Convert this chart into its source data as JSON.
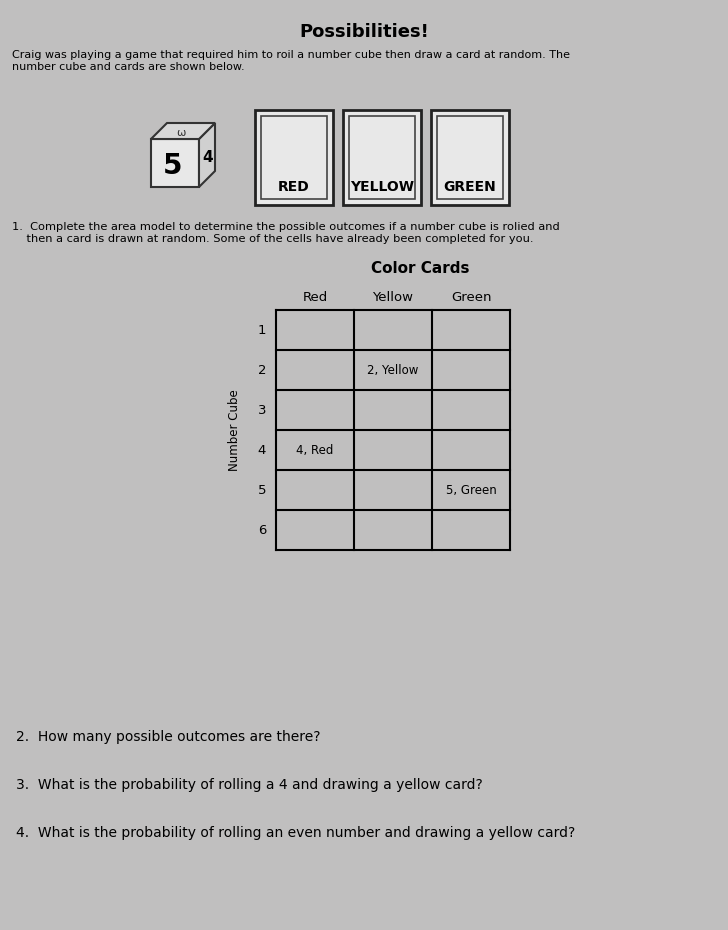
{
  "title": "Possibilities!",
  "intro_text": "Craig was playing a game that required him to roil a number cube then draw a card at random. The\nnumber cube and cards are shown below.",
  "card_labels": [
    "RED",
    "YELLOW",
    "GREEN"
  ],
  "instruction1": "1.  Complete the area model to determine the possible outcomes if a number cube is rolied and\n    then a card is drawn at random. Some of the cells have already been completed for you.",
  "table_title": "Color Cards",
  "col_headers": [
    "Red",
    "Yellow",
    "Green"
  ],
  "row_headers": [
    "1",
    "2",
    "3",
    "4",
    "5",
    "6"
  ],
  "y_label": "Number Cube",
  "question2": "2.  How many possible outcomes are there?",
  "question3": "3.  What is the probability of rolling a 4 and drawing a yellow card?",
  "question4": "4.  What is the probability of rolling an even number and drawing a yellow card?",
  "bg_color": "#c0bfbf",
  "text_color": "#000000",
  "table_line_color": "#000000"
}
